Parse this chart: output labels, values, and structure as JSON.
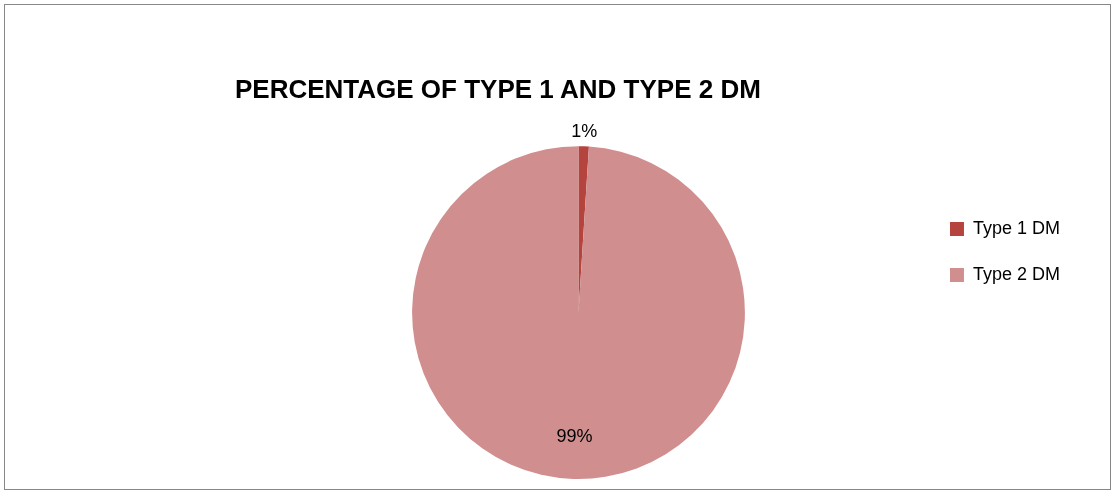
{
  "chart_data": {
    "type": "pie",
    "title": "PERCENTAGE OF TYPE 1 AND TYPE 2 DM",
    "categories": [
      "Type 1 DM",
      "Type 2 DM"
    ],
    "values": [
      1,
      99
    ],
    "colors": [
      "#b5443f",
      "#d08f8e"
    ],
    "value_labels": [
      "1%",
      "99%"
    ],
    "legend": "right"
  }
}
